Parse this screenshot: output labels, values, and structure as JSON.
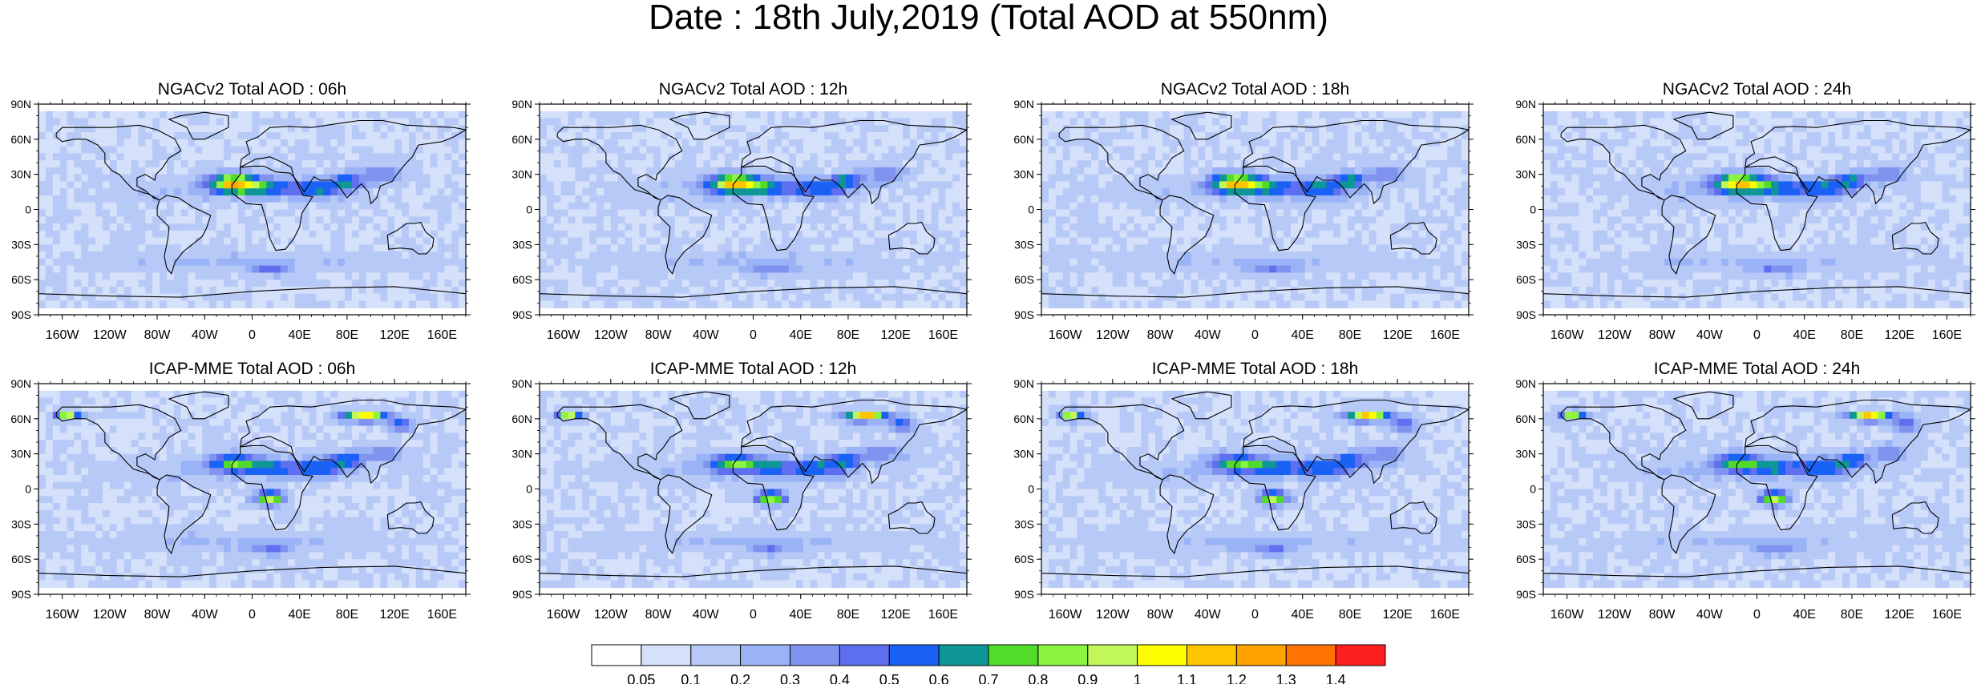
{
  "title": "Date : 18th July,2019 (Total AOD at 550nm)",
  "lon_ticks": [
    "160W",
    "120W",
    "80W",
    "40W",
    "0",
    "40E",
    "80E",
    "120E",
    "160E"
  ],
  "lat_ticks": [
    "90N",
    "60N",
    "30N",
    "0",
    "30S",
    "60S",
    "90S"
  ],
  "panels": [
    {
      "title": "NGACv2 Total AOD : 06h",
      "model": "NGACv2",
      "hour": "06h"
    },
    {
      "title": "NGACv2 Total AOD : 12h",
      "model": "NGACv2",
      "hour": "12h"
    },
    {
      "title": "NGACv2 Total AOD : 18h",
      "model": "NGACv2",
      "hour": "18h"
    },
    {
      "title": "NGACv2 Total AOD : 24h",
      "model": "NGACv2",
      "hour": "24h"
    },
    {
      "title": "ICAP-MME Total AOD : 06h",
      "model": "ICAP-MME",
      "hour": "06h"
    },
    {
      "title": "ICAP-MME Total AOD : 12h",
      "model": "ICAP-MME",
      "hour": "12h"
    },
    {
      "title": "ICAP-MME Total AOD : 18h",
      "model": "ICAP-MME",
      "hour": "18h"
    },
    {
      "title": "ICAP-MME Total AOD : 24h",
      "model": "ICAP-MME",
      "hour": "24h"
    }
  ],
  "colorbar": {
    "labels": [
      "0.05",
      "0.1",
      "0.2",
      "0.3",
      "0.4",
      "0.5",
      "0.6",
      "0.7",
      "0.8",
      "0.9",
      "1",
      "1.1",
      "1.2",
      "1.3",
      "1.4"
    ],
    "colors": [
      "#ffffff",
      "#d5e1fb",
      "#b7c9f6",
      "#9ab3f6",
      "#7f93ef",
      "#5e6ff0",
      "#1a61f5",
      "#0f9696",
      "#52dc2a",
      "#8cf53f",
      "#c2f75a",
      "#ffff00",
      "#ffc400",
      "#ffa200",
      "#ff7300",
      "#fe1f1f"
    ]
  }
}
